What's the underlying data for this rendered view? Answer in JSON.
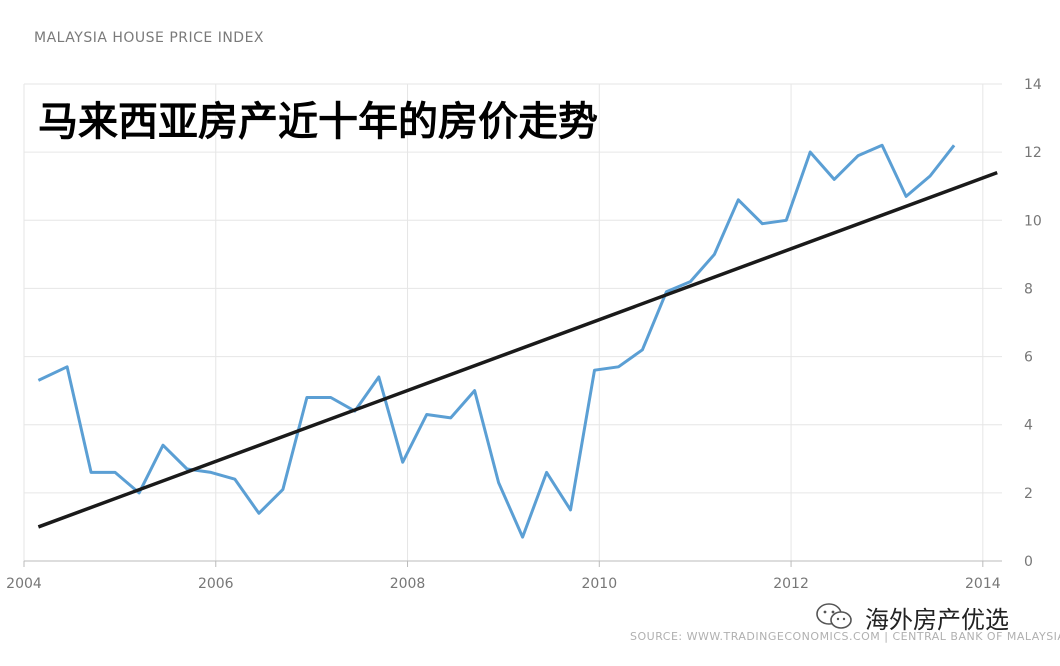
{
  "chart_data": {
    "type": "line",
    "header": "MALAYSIA HOUSE PRICE INDEX",
    "title": "马来西亚房产近十年的房价走势",
    "xlim": [
      2004,
      2014.2
    ],
    "ylim": [
      0,
      14
    ],
    "x_ticks": [
      2004,
      2006,
      2008,
      2010,
      2012,
      2014
    ],
    "y_ticks": [
      0,
      2,
      4,
      6,
      8,
      10,
      12,
      14
    ],
    "y_axis_side": "right",
    "grid": true,
    "series": [
      {
        "color": "#5b9fd4",
        "points": [
          [
            2004.15,
            5.3
          ],
          [
            2004.45,
            5.7
          ],
          [
            2004.7,
            2.6
          ],
          [
            2004.95,
            2.6
          ],
          [
            2005.2,
            2.0
          ],
          [
            2005.45,
            3.4
          ],
          [
            2005.7,
            2.7
          ],
          [
            2005.95,
            2.6
          ],
          [
            2006.2,
            2.4
          ],
          [
            2006.45,
            1.4
          ],
          [
            2006.7,
            2.1
          ],
          [
            2006.95,
            4.8
          ],
          [
            2007.2,
            4.8
          ],
          [
            2007.45,
            4.4
          ],
          [
            2007.7,
            5.4
          ],
          [
            2007.95,
            2.9
          ],
          [
            2008.2,
            4.3
          ],
          [
            2008.45,
            4.2
          ],
          [
            2008.7,
            5.0
          ],
          [
            2008.95,
            2.3
          ],
          [
            2009.2,
            0.7
          ],
          [
            2009.45,
            2.6
          ],
          [
            2009.7,
            1.5
          ],
          [
            2009.95,
            5.6
          ],
          [
            2010.2,
            5.7
          ],
          [
            2010.45,
            6.2
          ],
          [
            2010.7,
            7.9
          ],
          [
            2010.95,
            8.2
          ],
          [
            2011.2,
            9.0
          ],
          [
            2011.45,
            10.6
          ],
          [
            2011.7,
            9.9
          ],
          [
            2011.95,
            10.0
          ],
          [
            2012.2,
            12.0
          ],
          [
            2012.45,
            11.2
          ],
          [
            2012.7,
            11.9
          ],
          [
            2012.95,
            12.2
          ],
          [
            2013.2,
            10.7
          ],
          [
            2013.45,
            11.3
          ],
          [
            2013.7,
            12.2
          ]
        ]
      }
    ],
    "trend_line": {
      "color": "#1a1a1a",
      "from": [
        2004.15,
        1.0
      ],
      "to": [
        2014.15,
        11.4
      ]
    },
    "source": "SOURCE: WWW.TRADINGECONOMICS.COM | CENTRAL BANK OF MALAYSIA"
  },
  "brand": {
    "icon": "wechat-icon",
    "label": "海外房产优选"
  }
}
